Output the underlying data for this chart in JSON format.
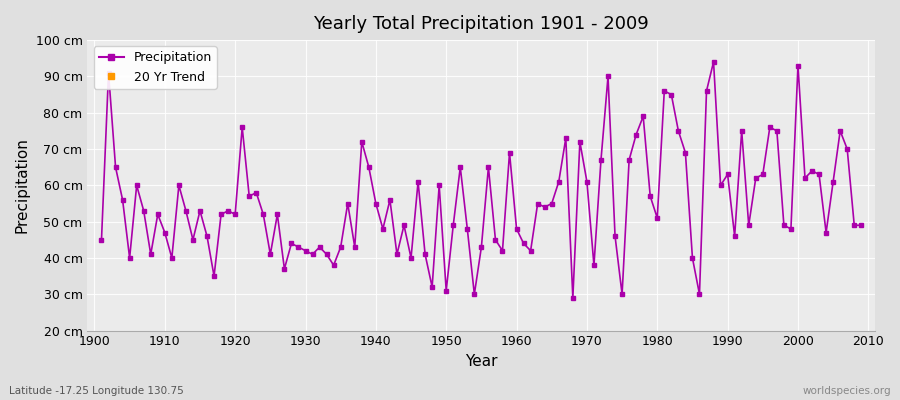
{
  "title": "Yearly Total Precipitation 1901 - 2009",
  "xlabel": "Year",
  "ylabel": "Precipitation",
  "subtitle": "Latitude -17.25 Longitude 130.75",
  "watermark": "worldspecies.org",
  "ylim": [
    20,
    100
  ],
  "xlim": [
    1899,
    2011
  ],
  "ytick_labels": [
    "20 cm",
    "30 cm",
    "40 cm",
    "50 cm",
    "60 cm",
    "70 cm",
    "80 cm",
    "90 cm",
    "100 cm"
  ],
  "ytick_values": [
    20,
    30,
    40,
    50,
    60,
    70,
    80,
    90,
    100
  ],
  "xtick_values": [
    1900,
    1910,
    1920,
    1930,
    1940,
    1950,
    1960,
    1970,
    1980,
    1990,
    2000,
    2010
  ],
  "line_color": "#aa00aa",
  "marker_color": "#aa00aa",
  "legend_trend_color": "#ff9900",
  "legend_precipitation": "Precipitation",
  "legend_trend": "20 Yr Trend",
  "years": [
    1901,
    1902,
    1903,
    1904,
    1905,
    1906,
    1907,
    1908,
    1909,
    1910,
    1911,
    1912,
    1913,
    1914,
    1915,
    1916,
    1917,
    1918,
    1919,
    1920,
    1921,
    1922,
    1923,
    1924,
    1925,
    1926,
    1927,
    1928,
    1929,
    1930,
    1931,
    1932,
    1933,
    1934,
    1935,
    1936,
    1937,
    1938,
    1939,
    1940,
    1941,
    1942,
    1943,
    1944,
    1945,
    1946,
    1947,
    1948,
    1949,
    1950,
    1951,
    1952,
    1953,
    1954,
    1955,
    1956,
    1957,
    1958,
    1959,
    1960,
    1961,
    1962,
    1963,
    1964,
    1965,
    1966,
    1967,
    1968,
    1969,
    1970,
    1971,
    1972,
    1973,
    1974,
    1975,
    1976,
    1977,
    1978,
    1979,
    1980,
    1981,
    1982,
    1983,
    1984,
    1985,
    1986,
    1987,
    1988,
    1989,
    1990,
    1991,
    1992,
    1993,
    1994,
    1995,
    1996,
    1997,
    1998,
    1999,
    2000,
    2001,
    2002,
    2003,
    2004,
    2005,
    2006,
    2007,
    2008,
    2009
  ],
  "precip": [
    45,
    91,
    65,
    56,
    40,
    60,
    53,
    41,
    52,
    47,
    40,
    60,
    53,
    45,
    53,
    46,
    35,
    52,
    53,
    52,
    76,
    57,
    58,
    52,
    41,
    52,
    37,
    44,
    43,
    42,
    41,
    43,
    41,
    38,
    43,
    55,
    43,
    72,
    65,
    55,
    48,
    56,
    41,
    49,
    40,
    61,
    41,
    32,
    60,
    31,
    49,
    65,
    48,
    30,
    43,
    65,
    45,
    42,
    69,
    48,
    44,
    42,
    55,
    54,
    55,
    61,
    73,
    29,
    72,
    61,
    38,
    67,
    90,
    46,
    30,
    67,
    74,
    79,
    57,
    51,
    86,
    85,
    75,
    69,
    40,
    30,
    86,
    94,
    60,
    63,
    46,
    75,
    49,
    62,
    63,
    76,
    75,
    49,
    48,
    93,
    62,
    64,
    63,
    47,
    61,
    75,
    70,
    49,
    49
  ]
}
